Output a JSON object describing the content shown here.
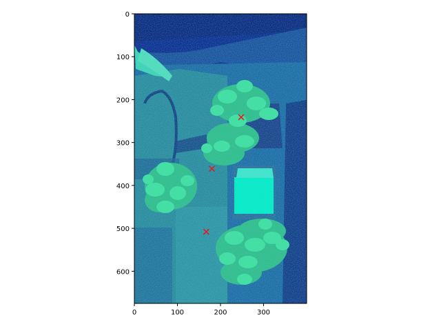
{
  "chart_data": {
    "type": "scatter",
    "title": "",
    "xlabel": "",
    "ylabel": "",
    "xlim": [
      0,
      400
    ],
    "ylim": [
      675,
      0
    ],
    "y_inverted": true,
    "background": "false-color plant image (blue/green colormap)",
    "x_ticks": [
      0,
      100,
      200,
      300
    ],
    "x_tick_labels": [
      "0",
      "100",
      "200",
      "300"
    ],
    "y_ticks": [
      0,
      100,
      200,
      300,
      400,
      500,
      600
    ],
    "y_tick_labels": [
      "0",
      "100",
      "200",
      "300",
      "400",
      "500",
      "600"
    ],
    "grid": false,
    "legend": "none",
    "series": [
      {
        "marker": "x",
        "color": "#e31a1c",
        "points": [
          {
            "x": 248,
            "y": 241
          },
          {
            "x": 180,
            "y": 361
          },
          {
            "x": 167,
            "y": 508
          }
        ]
      }
    ]
  },
  "colors": {
    "background_dark": "#0b2a8a",
    "background_mid": "#1a5aa0",
    "leaf_bright": "#35e08a",
    "leaf_mid": "#27a878",
    "panel_cyan": "#00ffc8",
    "marker": "#e31a1c"
  }
}
